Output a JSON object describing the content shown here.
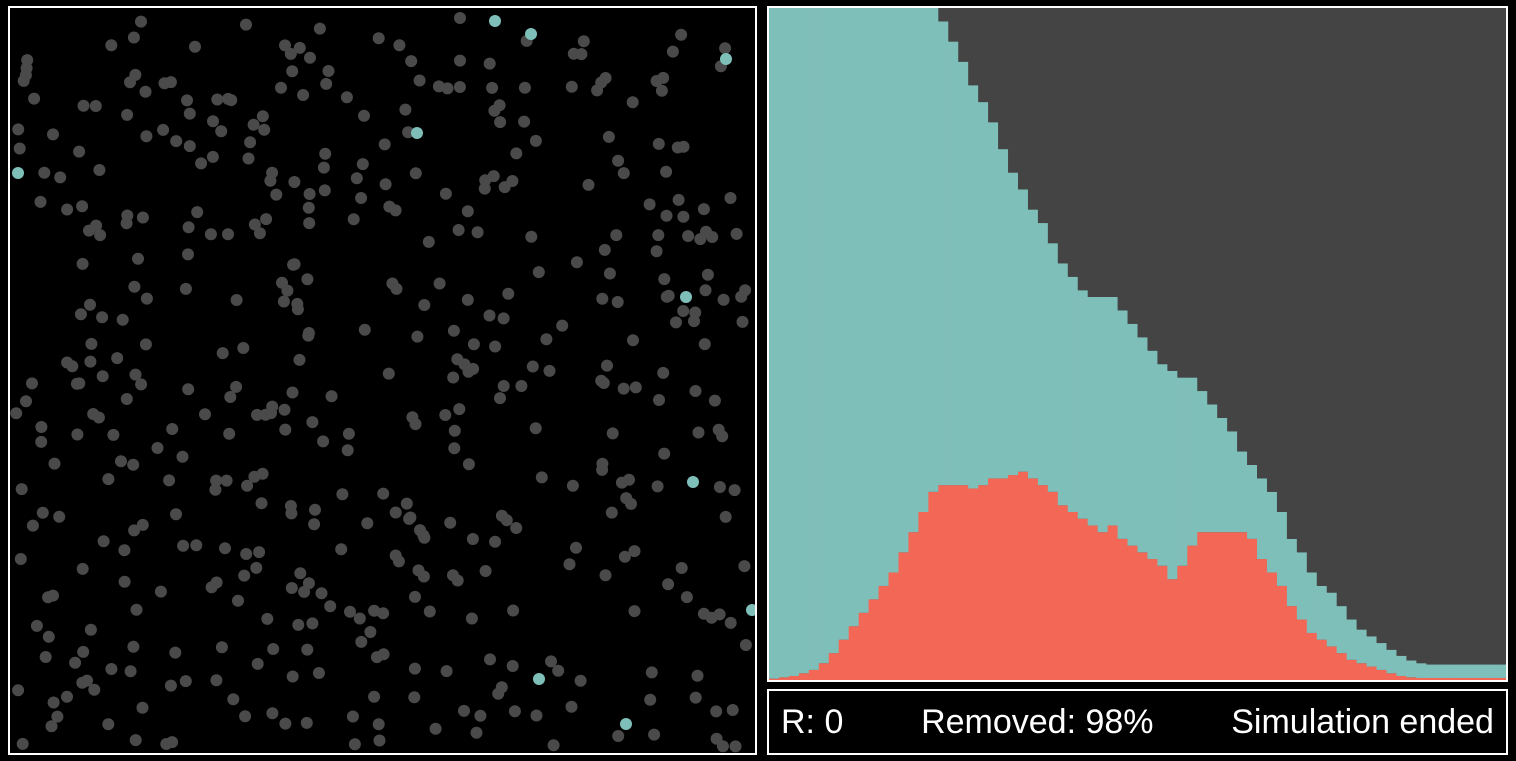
{
  "status": {
    "r_label": "R: 0",
    "removed_label": "Removed: 98%",
    "state_label": "Simulation ended"
  },
  "colors": {
    "background": "#000000",
    "removed_particle": "#4a4a4a",
    "infected_particle": "#7fbfba",
    "chart_susceptible": "#444444",
    "chart_recovered": "#7fbfba",
    "chart_infected": "#f26755",
    "border": "#ffffff"
  },
  "particles": {
    "infected_count": 10,
    "removed_count_approx": 480
  },
  "chart_data": {
    "type": "area",
    "title": "",
    "xlabel": "",
    "ylabel": "",
    "ylim": [
      0,
      1
    ],
    "stacking": "infected (bottom), removed (middle), susceptible (top)",
    "x": [
      0,
      1,
      2,
      3,
      4,
      5,
      6,
      7,
      8,
      9,
      10,
      11,
      12,
      13,
      14,
      15,
      16,
      17,
      18,
      19,
      20,
      21,
      22,
      23,
      24,
      25,
      26,
      27,
      28,
      29,
      30,
      31,
      32,
      33,
      34,
      35,
      36,
      37,
      38,
      39,
      40,
      41,
      42,
      43,
      44,
      45,
      46,
      47,
      48,
      49,
      50,
      51,
      52,
      53,
      54,
      55,
      56,
      57,
      58,
      59,
      60,
      61,
      62,
      63,
      64,
      65,
      66,
      67,
      68,
      69,
      70,
      71,
      72,
      73
    ],
    "series": [
      {
        "name": "",
        "role": "infected",
        "values": [
          0.002,
          0.004,
          0.006,
          0.01,
          0.015,
          0.025,
          0.04,
          0.06,
          0.08,
          0.1,
          0.12,
          0.14,
          0.16,
          0.19,
          0.22,
          0.25,
          0.28,
          0.29,
          0.29,
          0.29,
          0.285,
          0.29,
          0.3,
          0.3,
          0.305,
          0.31,
          0.3,
          0.29,
          0.28,
          0.26,
          0.25,
          0.24,
          0.23,
          0.22,
          0.23,
          0.21,
          0.2,
          0.19,
          0.18,
          0.17,
          0.15,
          0.17,
          0.2,
          0.22,
          0.22,
          0.22,
          0.22,
          0.22,
          0.21,
          0.18,
          0.16,
          0.14,
          0.11,
          0.09,
          0.07,
          0.06,
          0.05,
          0.04,
          0.03,
          0.025,
          0.02,
          0.015,
          0.01,
          0.006,
          0.004,
          0.003,
          0.003,
          0.003,
          0.003,
          0.003,
          0.003,
          0.003,
          0.003,
          0.003
        ]
      },
      {
        "name": "",
        "role": "removed",
        "values": [
          0.998,
          0.996,
          0.994,
          0.99,
          0.985,
          0.975,
          0.96,
          0.94,
          0.92,
          0.9,
          0.88,
          0.86,
          0.84,
          0.81,
          0.78,
          0.75,
          0.72,
          0.69,
          0.66,
          0.63,
          0.6,
          0.57,
          0.53,
          0.49,
          0.45,
          0.42,
          0.4,
          0.39,
          0.37,
          0.36,
          0.35,
          0.34,
          0.34,
          0.35,
          0.34,
          0.34,
          0.33,
          0.32,
          0.31,
          0.3,
          0.31,
          0.28,
          0.25,
          0.21,
          0.19,
          0.17,
          0.15,
          0.12,
          0.11,
          0.12,
          0.12,
          0.11,
          0.1,
          0.1,
          0.09,
          0.08,
          0.08,
          0.07,
          0.06,
          0.05,
          0.045,
          0.04,
          0.035,
          0.03,
          0.025,
          0.022,
          0.02,
          0.02,
          0.02,
          0.02,
          0.02,
          0.02,
          0.02,
          0.02
        ]
      },
      {
        "name": "",
        "role": "susceptible",
        "values": [
          0,
          0,
          0,
          0,
          0,
          0,
          0,
          0,
          0,
          0,
          0,
          0,
          0,
          0,
          0,
          0,
          0,
          0.02,
          0.05,
          0.08,
          0.115,
          0.14,
          0.17,
          0.21,
          0.245,
          0.27,
          0.3,
          0.32,
          0.35,
          0.38,
          0.4,
          0.42,
          0.43,
          0.43,
          0.43,
          0.45,
          0.47,
          0.49,
          0.51,
          0.53,
          0.54,
          0.55,
          0.55,
          0.57,
          0.59,
          0.61,
          0.63,
          0.66,
          0.68,
          0.7,
          0.72,
          0.75,
          0.79,
          0.81,
          0.84,
          0.86,
          0.87,
          0.89,
          0.91,
          0.925,
          0.935,
          0.945,
          0.955,
          0.964,
          0.971,
          0.975,
          0.977,
          0.977,
          0.977,
          0.977,
          0.977,
          0.977,
          0.977,
          0.977
        ]
      }
    ]
  }
}
